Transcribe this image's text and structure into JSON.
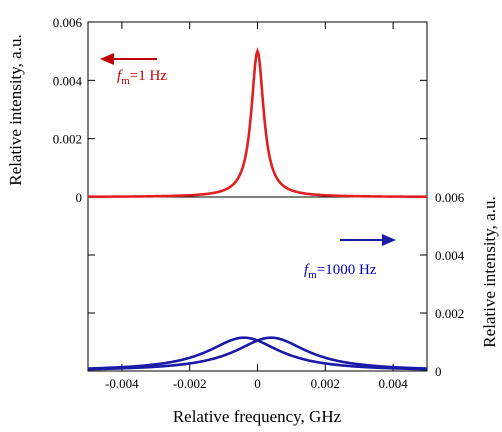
{
  "chart_data": [
    {
      "type": "line",
      "panel": "top",
      "ylabel": "Relative intensity, a.u.",
      "yaxis_side": "left",
      "ylim": [
        0,
        0.006
      ],
      "yticks": [
        "0",
        "0.002",
        "0.004",
        "0.006"
      ],
      "xlim": [
        -0.005,
        0.005
      ],
      "annotation": {
        "symbol": "f",
        "subscript": "m",
        "text": "=1 Hz",
        "arrow": "left",
        "color": "#c00000"
      },
      "series": [
        {
          "color": "#e02020",
          "shape": "lorentzian",
          "center": 0.0,
          "peak": 0.005,
          "hwhm": 0.00022
        }
      ]
    },
    {
      "type": "line",
      "panel": "bottom",
      "ylabel": "Relative intensity, a.u.",
      "yaxis_side": "right",
      "ylim": [
        0,
        0.006
      ],
      "yticks": [
        "0",
        "0.002",
        "0.004",
        "0.006"
      ],
      "xlim": [
        -0.005,
        0.005
      ],
      "xlabel": "Relative frequency, GHz",
      "xticks": [
        "-0.004",
        "-0.002",
        "0",
        "0.002",
        "0.004"
      ],
      "annotation": {
        "symbol": "f",
        "subscript": "m",
        "text": "=1000 Hz",
        "arrow": "right",
        "color": "#0000c0"
      },
      "series": [
        {
          "color": "#1a1aa8",
          "shape": "lorentzian",
          "center": -0.0004,
          "peak": 0.00115,
          "hwhm": 0.0013
        },
        {
          "color": "#1a1aa8",
          "shape": "lorentzian",
          "center": 0.0004,
          "peak": 0.00115,
          "hwhm": 0.0013
        }
      ]
    }
  ]
}
